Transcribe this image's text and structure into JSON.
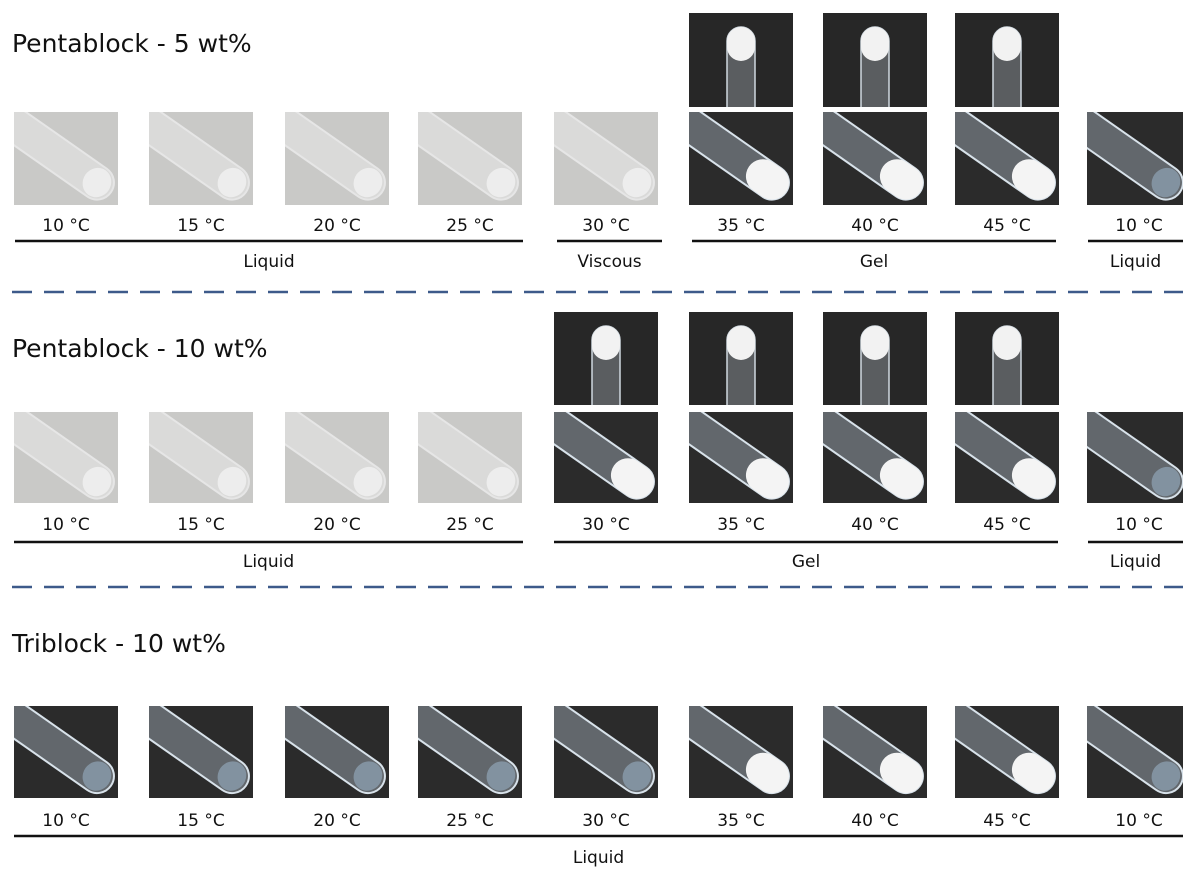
{
  "sections": [
    {
      "title": "Pentablock - 5 wt%",
      "samples": [
        "10 °C",
        "15 °C",
        "20 °C",
        "25 °C",
        "30 °C",
        "35 °C",
        "40 °C",
        "45 °C",
        "10 °C"
      ],
      "phases": [
        "Liquid",
        "Viscous",
        "Gel",
        "Liquid"
      ]
    },
    {
      "title": "Pentablock - 10 wt%",
      "samples": [
        "10 °C",
        "15 °C",
        "20 °C",
        "25 °C",
        "30 °C",
        "35 °C",
        "40 °C",
        "45 °C",
        "10 °C"
      ],
      "phases": [
        "Liquid",
        "Gel",
        "Liquid"
      ]
    },
    {
      "title": "Triblock - 10 wt%",
      "samples": [
        "10 °C",
        "15 °C",
        "20 °C",
        "25 °C",
        "30 °C",
        "35 °C",
        "40 °C",
        "45 °C",
        "10 °C"
      ],
      "phases": [
        "Liquid"
      ]
    }
  ]
}
